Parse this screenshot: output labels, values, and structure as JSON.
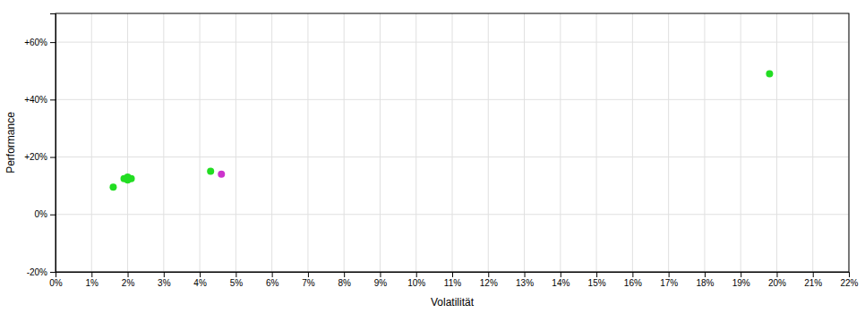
{
  "chart_data": {
    "type": "scatter",
    "xlabel": "Volatilität",
    "ylabel": "Performance",
    "xlim": [
      0.0,
      0.22
    ],
    "ylim": [
      -0.2,
      0.7
    ],
    "xticks": [
      {
        "value": 0.0,
        "label": "0%"
      },
      {
        "value": 0.01,
        "label": "1%"
      },
      {
        "value": 0.02,
        "label": "2%"
      },
      {
        "value": 0.03,
        "label": "3%"
      },
      {
        "value": 0.04,
        "label": "4%"
      },
      {
        "value": 0.05,
        "label": "5%"
      },
      {
        "value": 0.06,
        "label": "6%"
      },
      {
        "value": 0.07,
        "label": "7%"
      },
      {
        "value": 0.08,
        "label": "8%"
      },
      {
        "value": 0.09,
        "label": "9%"
      },
      {
        "value": 0.1,
        "label": "10%"
      },
      {
        "value": 0.11,
        "label": "11%"
      },
      {
        "value": 0.12,
        "label": "12%"
      },
      {
        "value": 0.13,
        "label": "13%"
      },
      {
        "value": 0.14,
        "label": "14%"
      },
      {
        "value": 0.15,
        "label": "15%"
      },
      {
        "value": 0.16,
        "label": "16%"
      },
      {
        "value": 0.17,
        "label": "17%"
      },
      {
        "value": 0.18,
        "label": "18%"
      },
      {
        "value": 0.19,
        "label": "19%"
      },
      {
        "value": 0.2,
        "label": "20%"
      },
      {
        "value": 0.21,
        "label": "21%"
      },
      {
        "value": 0.22,
        "label": "22%"
      }
    ],
    "yticks": [
      {
        "value": -0.2,
        "label": "-20%"
      },
      {
        "value": 0.0,
        "label": "0%"
      },
      {
        "value": 0.2,
        "label": "+20%"
      },
      {
        "value": 0.4,
        "label": "+40%"
      },
      {
        "value": 0.6,
        "label": "+60%"
      }
    ],
    "grid": true,
    "series": [
      {
        "color": "#22dd22",
        "x": [
          0.016,
          0.019,
          0.02,
          0.021,
          0.02,
          0.043,
          0.198
        ],
        "values": [
          0.095,
          0.125,
          0.13,
          0.125,
          0.12,
          0.15,
          0.49
        ]
      },
      {
        "color": "#cc33cc",
        "x": [
          0.046
        ],
        "values": [
          0.14
        ]
      }
    ]
  }
}
